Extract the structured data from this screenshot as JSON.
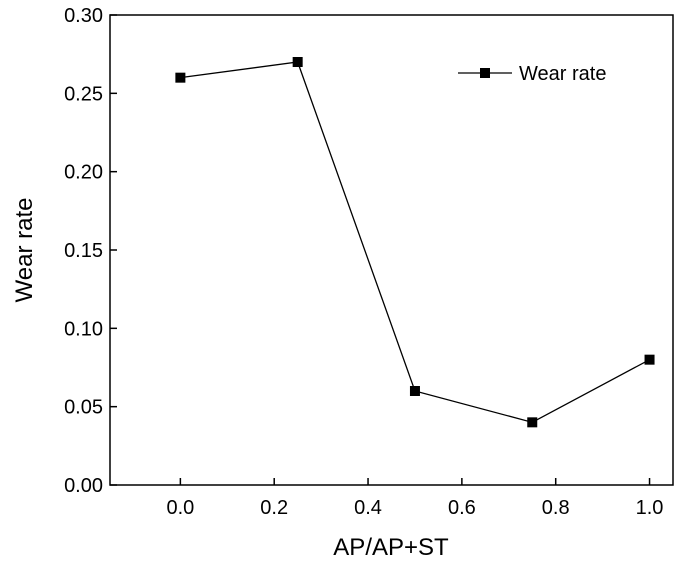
{
  "chart_data": {
    "type": "line",
    "title": "",
    "xlabel": "AP/AP+ST",
    "ylabel": "Wear rate",
    "xlim": [
      -0.15,
      1.05
    ],
    "ylim": [
      0.0,
      0.3
    ],
    "x_ticks": [
      0.0,
      0.2,
      0.4,
      0.6,
      0.8,
      1.0
    ],
    "x_tick_labels": [
      "0.0",
      "0.2",
      "0.4",
      "0.6",
      "0.8",
      "1.0"
    ],
    "y_ticks": [
      0.0,
      0.05,
      0.1,
      0.15,
      0.2,
      0.25,
      0.3
    ],
    "y_tick_labels": [
      "0.00",
      "0.05",
      "0.10",
      "0.15",
      "0.20",
      "0.25",
      "0.30"
    ],
    "grid": false,
    "legend_position": "top-right",
    "series": [
      {
        "name": "Wear rate",
        "marker": "square",
        "color": "#000000",
        "x": [
          0.0,
          0.25,
          0.5,
          0.75,
          1.0
        ],
        "y": [
          0.26,
          0.27,
          0.06,
          0.04,
          0.08
        ]
      }
    ]
  }
}
